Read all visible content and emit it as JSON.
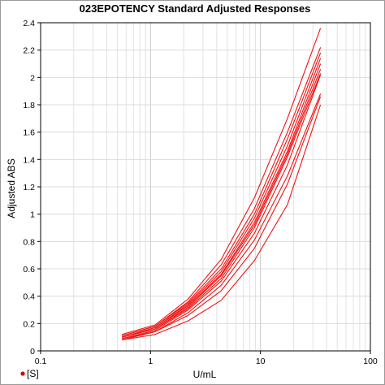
{
  "chart_data": {
    "type": "line",
    "title": "023EPOTENCY Standard Adjusted Responses",
    "xlabel": "U/mL",
    "ylabel": "Adjusted ABS",
    "x_scale": "log",
    "xlim": [
      0.1,
      100
    ],
    "ylim": [
      0,
      2.4
    ],
    "x_ticks": [
      "0.1",
      "1",
      "10",
      "100"
    ],
    "y_ticks": [
      "0",
      "0.2",
      "0.4",
      "0.6",
      "0.8",
      "1",
      "1.2",
      "1.4",
      "1.6",
      "1.8",
      "2",
      "2.2",
      "2.4"
    ],
    "grid": true,
    "color": "#ee1111",
    "legend": {
      "label": "[S]",
      "marker_color": "#dd0000",
      "placement": "bottom-left"
    },
    "x": [
      0.55,
      1.1,
      2.2,
      4.4,
      8.8,
      17.6,
      35.2
    ],
    "series": [
      {
        "values": [
          0.12,
          0.19,
          0.38,
          0.67,
          1.12,
          1.7,
          2.36
        ]
      },
      {
        "values": [
          0.11,
          0.18,
          0.36,
          0.63,
          1.04,
          1.6,
          2.22
        ]
      },
      {
        "values": [
          0.11,
          0.18,
          0.35,
          0.6,
          1.0,
          1.55,
          2.18
        ]
      },
      {
        "values": [
          0.1,
          0.17,
          0.34,
          0.58,
          0.97,
          1.5,
          2.14
        ]
      },
      {
        "values": [
          0.1,
          0.17,
          0.33,
          0.56,
          0.94,
          1.46,
          2.1
        ]
      },
      {
        "values": [
          0.1,
          0.16,
          0.32,
          0.55,
          0.92,
          1.44,
          2.06
        ]
      },
      {
        "values": [
          0.1,
          0.16,
          0.31,
          0.53,
          0.9,
          1.42,
          2.03
        ]
      },
      {
        "values": [
          0.09,
          0.15,
          0.3,
          0.51,
          0.86,
          1.36,
          2.02
        ]
      },
      {
        "values": [
          0.09,
          0.14,
          0.28,
          0.48,
          0.81,
          1.28,
          1.88
        ]
      },
      {
        "values": [
          0.08,
          0.14,
          0.26,
          0.44,
          0.75,
          1.22,
          1.86
        ]
      },
      {
        "values": [
          0.08,
          0.12,
          0.22,
          0.37,
          0.66,
          1.07,
          1.8
        ]
      }
    ]
  }
}
